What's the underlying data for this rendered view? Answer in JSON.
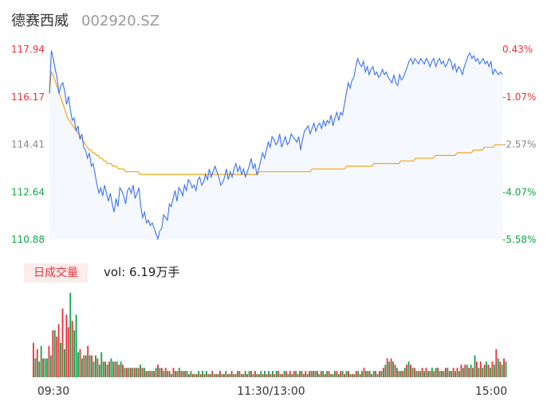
{
  "header": {
    "stock_name": "德赛西威",
    "stock_code": "002920.SZ"
  },
  "volume_label": {
    "badge": "日成交量",
    "text": "vol: 6.19万手"
  },
  "colors": {
    "up": "#e8323c",
    "down": "#13a34a",
    "price_line": "#3b73f0",
    "avg_line": "#f0a813",
    "neutral": "#888888",
    "area_fill": "#f5f8fe"
  },
  "chart_data": [
    {
      "type": "line",
      "title": "",
      "y_left_ticks": [
        "117.94",
        "116.17",
        "114.41",
        "112.64",
        "110.88"
      ],
      "y_right_ticks": [
        "0.43%",
        "-1.07%",
        "-2.57%",
        "-4.07%",
        "-5.58%"
      ],
      "ylim": [
        110.88,
        117.94
      ],
      "x_tick_labels": [
        "09:30",
        "11:30/13:00",
        "15:00"
      ],
      "series": [
        {
          "values": [
            116.3,
            117.9,
            117.6,
            117.2,
            116.9,
            116.3,
            116.6,
            116.7,
            116.4,
            115.9,
            116.2,
            115.7,
            115.3,
            115.4,
            114.9,
            115.1,
            114.6,
            114.8,
            114.3,
            114.2,
            113.9,
            114.1,
            113.6,
            113.7,
            113.3,
            112.9,
            112.6,
            112.8,
            112.5,
            112.9,
            112.6,
            112.3,
            112.6,
            112.2,
            111.9,
            112.4,
            112.1,
            112.8,
            112.7,
            112.5,
            112.2,
            112.7,
            112.8,
            112.6,
            112.9,
            112.4,
            112.6,
            112.8,
            112.1,
            111.7,
            111.9,
            111.5,
            111.6,
            111.4,
            111.5,
            111.3,
            111.1,
            110.9,
            111.2,
            111.3,
            111.8,
            111.7,
            111.6,
            112.2,
            112.1,
            112.4,
            112.7,
            112.3,
            112.8,
            112.7,
            112.5,
            112.9,
            112.7,
            113.1,
            113.0,
            112.8,
            112.9,
            112.7,
            113.1,
            113.2,
            112.9,
            113.0,
            113.3,
            113.1,
            113.5,
            113.2,
            113.4,
            113.6,
            113.4,
            113.2,
            112.9,
            113.0,
            113.2,
            113.5,
            113.1,
            113.4,
            113.2,
            113.5,
            113.7,
            113.4,
            113.6,
            113.3,
            113.5,
            113.2,
            113.4,
            113.6,
            113.9,
            113.5,
            113.7,
            113.3,
            113.5,
            113.8,
            114.1,
            113.9,
            114.2,
            114.5,
            114.3,
            114.7,
            114.6,
            114.4,
            114.5,
            114.8,
            114.3,
            114.5,
            114.7,
            114.4,
            114.5,
            114.8,
            114.7,
            114.6,
            114.5,
            114.7,
            114.2,
            114.6,
            114.9,
            115.0,
            115.1,
            114.8,
            115.0,
            115.2,
            114.9,
            115.1,
            115.2,
            115.0,
            115.3,
            115.1,
            115.3,
            115.2,
            115.5,
            115.1,
            115.4,
            115.6,
            115.3,
            115.6,
            115.5,
            115.9,
            116.3,
            116.7,
            116.5,
            116.8,
            116.9,
            117.3,
            117.6,
            117.4,
            117.3,
            117.5,
            117.1,
            117.3,
            117.0,
            117.2,
            117.3,
            117.0,
            117.1,
            116.9,
            117.0,
            117.2,
            117.0,
            117.1,
            116.9,
            116.8,
            116.7,
            117.0,
            116.7,
            116.6,
            117.0,
            116.8,
            116.9,
            117.1,
            117.3,
            117.5,
            117.6,
            117.4,
            117.6,
            117.5,
            117.4,
            117.6,
            117.5,
            117.4,
            117.6,
            117.5,
            117.3,
            117.5,
            117.6,
            117.3,
            117.5,
            117.6,
            117.4,
            117.5,
            117.3,
            117.4,
            117.6,
            117.5,
            117.2,
            117.4,
            117.1,
            117.3,
            117.2,
            117.0,
            117.3,
            117.5,
            117.7,
            117.8,
            117.6,
            117.7,
            117.5,
            117.6,
            117.4,
            117.5,
            117.6,
            117.4,
            117.5,
            117.3,
            117.5,
            117.0,
            117.2,
            117.1,
            117.0,
            117.1,
            117.0
          ]
        },
        {
          "values": [
            116.3,
            117.1,
            117.0,
            116.8,
            116.6,
            116.4,
            116.2,
            116.0,
            115.8,
            115.6,
            115.4,
            115.3,
            115.2,
            115.1,
            115.0,
            114.9,
            114.8,
            114.7,
            114.6,
            114.5,
            114.4,
            114.3,
            114.2,
            114.2,
            114.1,
            114.1,
            114.0,
            114.0,
            113.9,
            113.9,
            113.8,
            113.8,
            113.7,
            113.7,
            113.7,
            113.6,
            113.6,
            113.6,
            113.5,
            113.5,
            113.5,
            113.5,
            113.4,
            113.4,
            113.4,
            113.4,
            113.4,
            113.4,
            113.4,
            113.4,
            113.3,
            113.3,
            113.3,
            113.3,
            113.3,
            113.3,
            113.3,
            113.3,
            113.3,
            113.3,
            113.3,
            113.3,
            113.3,
            113.3,
            113.3,
            113.3,
            113.3,
            113.3,
            113.3,
            113.3,
            113.3,
            113.3,
            113.3,
            113.3,
            113.3,
            113.3,
            113.3,
            113.3,
            113.3,
            113.3,
            113.3,
            113.3,
            113.3,
            113.3,
            113.3,
            113.3,
            113.3,
            113.3,
            113.3,
            113.3,
            113.3,
            113.3,
            113.3,
            113.3,
            113.3,
            113.3,
            113.3,
            113.3,
            113.3,
            113.3,
            113.3,
            113.3,
            113.3,
            113.3,
            113.3,
            113.3,
            113.3,
            113.3,
            113.3,
            113.3,
            113.3,
            113.3,
            113.3,
            113.3,
            113.3,
            113.3,
            113.4,
            113.4,
            113.4,
            113.4,
            113.4,
            113.4,
            113.4,
            113.4,
            113.4,
            113.4,
            113.4,
            113.4,
            113.4,
            113.4,
            113.4,
            113.4,
            113.4,
            113.4,
            113.4,
            113.4,
            113.4,
            113.4,
            113.4,
            113.4,
            113.4,
            113.4,
            113.4,
            113.4,
            113.4,
            113.5,
            113.5,
            113.5,
            113.5,
            113.5,
            113.5,
            113.5,
            113.5,
            113.5,
            113.5,
            113.5,
            113.5,
            113.5,
            113.5,
            113.5,
            113.5,
            113.5,
            113.5,
            113.5,
            113.6,
            113.6,
            113.6,
            113.6,
            113.6,
            113.6,
            113.6,
            113.6,
            113.6,
            113.6,
            113.6,
            113.6,
            113.6,
            113.6,
            113.6,
            113.7,
            113.7,
            113.7,
            113.7,
            113.7,
            113.7,
            113.7,
            113.7,
            113.7,
            113.7,
            113.7,
            113.7,
            113.7,
            113.7,
            113.7,
            113.8,
            113.8,
            113.8,
            113.8,
            113.8,
            113.8,
            113.8,
            113.8,
            113.9,
            113.9,
            113.9,
            113.9,
            113.9,
            113.9,
            113.9,
            113.9,
            113.9,
            113.9,
            113.9,
            114.0,
            114.0,
            114.0,
            114.0,
            114.0,
            114.0,
            114.0,
            114.0,
            114.0,
            114.0,
            114.0,
            114.0,
            114.1,
            114.1,
            114.1,
            114.1,
            114.1,
            114.1,
            114.1,
            114.1,
            114.1,
            114.2,
            114.2,
            114.2,
            114.2,
            114.2,
            114.2,
            114.3,
            114.3,
            114.3,
            114.3,
            114.3,
            114.3,
            114.4,
            114.4,
            114.4,
            114.4,
            114.4
          ]
        }
      ]
    },
    {
      "type": "bar",
      "title": "",
      "series": [
        {
          "values": [
            1.1,
            0.6,
            0.9,
            0.5,
            1.0,
            0.6,
            0.6,
            0.6,
            1.0,
            0.7,
            1.5,
            1.5,
            1.3,
            1.7,
            1.1,
            2.2,
            0.9,
            2.0,
            1.6,
            2.7,
            1.8,
            1.5,
            2.0,
            0.8,
            0.9,
            0.6,
            0.7,
            0.7,
            1.0,
            0.7,
            0.7,
            0.5,
            0.7,
            0.6,
            0.4,
            0.8,
            0.5,
            0.5,
            0.4,
            0.5,
            0.6,
            0.5,
            0.5,
            0.5,
            0.4,
            0.5,
            0.4,
            0.3,
            0.3,
            0.3,
            0.3,
            0.3,
            0.3,
            0.3,
            0.3,
            0.4,
            0.3,
            0.3,
            0.2,
            0.2,
            0.2,
            0.2,
            0.2,
            0.3,
            0.4,
            0.3,
            0.3,
            0.2,
            0.3,
            0.2,
            0.2,
            0.1,
            0.3,
            0.2,
            0.2,
            0.3,
            0.2,
            0.2,
            0.2,
            0.2,
            0.1,
            0.2,
            0.1,
            0.1,
            0.1,
            0.2,
            0.1,
            0.2,
            0.1,
            0.2,
            0.1,
            0.1,
            0.2,
            0.1,
            0.1,
            0.1,
            0.2,
            0.1,
            0.1,
            0.2,
            0.1,
            0.1,
            0.2,
            0.1,
            0.1,
            0.2,
            0.2,
            0.1,
            0.1,
            0.2,
            0.1,
            0.2,
            0.2,
            0.1,
            0.2,
            0.1,
            0.1,
            0.2,
            0.1,
            0.2,
            0.1,
            0.2,
            0.1,
            0.2,
            0.1,
            0.2,
            0.2,
            0.1,
            0.1,
            0.2,
            0.2,
            0.1,
            0.2,
            0.1,
            0.2,
            0.2,
            0.1,
            0.2,
            0.2,
            0.1,
            0.2,
            0.1,
            0.2,
            0.2,
            0.2,
            0.2,
            0.2,
            0.1,
            0.2,
            0.2,
            0.1,
            0.2,
            0.2,
            0.1,
            0.1,
            0.2,
            0.2,
            0.1,
            0.2,
            0.2,
            0.1,
            0.2,
            0.2,
            0.1,
            0.1,
            0.1,
            0.2,
            0.2,
            0.1,
            0.2,
            0.3,
            0.2,
            0.2,
            0.2,
            0.1,
            0.2,
            0.2,
            0.1,
            0.2,
            0.2,
            0.3,
            0.4,
            0.6,
            0.5,
            0.6,
            0.5,
            0.4,
            0.3,
            0.2,
            0.2,
            0.2,
            0.3,
            0.4,
            0.5,
            0.4,
            0.3,
            0.3,
            0.2,
            0.2,
            0.2,
            0.3,
            0.2,
            0.3,
            0.2,
            0.2,
            0.3,
            0.2,
            0.3,
            0.3,
            0.2,
            0.2,
            0.2,
            0.3,
            0.3,
            0.2,
            0.2,
            0.3,
            0.2,
            0.3,
            0.2,
            0.4,
            0.3,
            0.4,
            0.4,
            0.3,
            0.4,
            0.3,
            0.7,
            0.5,
            0.3,
            0.5,
            0.3,
            0.4,
            0.5,
            0.4,
            0.3,
            0.5,
            0.4,
            0.9,
            0.6,
            0.5,
            0.4,
            0.6,
            0.5
          ],
          "up": [
            1,
            0,
            1,
            0,
            0,
            1,
            0,
            0,
            1,
            0,
            1,
            0,
            1,
            1,
            0,
            1,
            0,
            1,
            1,
            0,
            1,
            0,
            0,
            0,
            1,
            0,
            1,
            0,
            1,
            0,
            1,
            0,
            0,
            1,
            0,
            0,
            0,
            1,
            0,
            1,
            0,
            0,
            1,
            0,
            1,
            0,
            1,
            0,
            1,
            0,
            1,
            0,
            1,
            0,
            1,
            0,
            1,
            0,
            1,
            0,
            1,
            0,
            1,
            0,
            1,
            0,
            1,
            0,
            1,
            0,
            1,
            0,
            1,
            0,
            1,
            0,
            1,
            0,
            1,
            0,
            1,
            0,
            1,
            0,
            1,
            0,
            1,
            0,
            1,
            0,
            1,
            0,
            1,
            0,
            1,
            0,
            1,
            0,
            1,
            0,
            1,
            0,
            1,
            0,
            1,
            0,
            1,
            0,
            1,
            0,
            1,
            0,
            1,
            0,
            1,
            0,
            1,
            0,
            1,
            0,
            1,
            0,
            1,
            0,
            1,
            0,
            1,
            0,
            1,
            0,
            1,
            0,
            1,
            0,
            1,
            0,
            1,
            0,
            1,
            0,
            1,
            0,
            1,
            0,
            1,
            0,
            1,
            0,
            1,
            0,
            1,
            0,
            1,
            0,
            1,
            0,
            1,
            0,
            1,
            0,
            1,
            0,
            1,
            0,
            1,
            0,
            1,
            0,
            1,
            0,
            1,
            0,
            1,
            0,
            1,
            0,
            1,
            0,
            1,
            0,
            1,
            0,
            1,
            0,
            1,
            0,
            1,
            0,
            1,
            0,
            1,
            0,
            1,
            0,
            1,
            0,
            1,
            0,
            1,
            0,
            1,
            0,
            1,
            0,
            1,
            0,
            1,
            0,
            1,
            0,
            1,
            0,
            1,
            0,
            1,
            0,
            1,
            0,
            1,
            0,
            1,
            0,
            1,
            0,
            1,
            0,
            1,
            0,
            1,
            0,
            1,
            0,
            1,
            0,
            1,
            0,
            1,
            0,
            1,
            0,
            1,
            0,
            1,
            0,
            1
          ]
        }
      ]
    }
  ]
}
